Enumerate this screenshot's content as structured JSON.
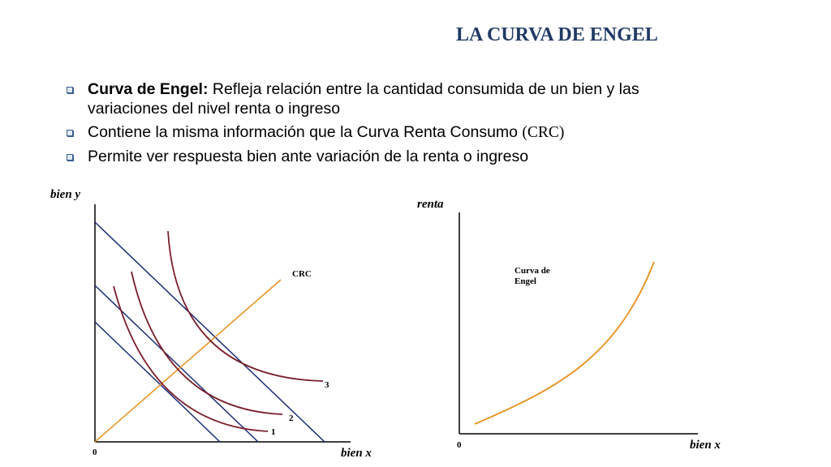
{
  "title": "LA CURVA DE ENGEL",
  "bullets": [
    {
      "bold": "Curva de Engel:",
      "text": " Refleja relación entre la cantidad consumida de un bien y las variaciones del nivel renta o ingreso"
    },
    {
      "text": "Contiene la misma información que la Curva Renta Consumo ",
      "serif_text": "(CRC)"
    },
    {
      "text": "Permite ver respuesta bien ante variación de la renta o  ingreso"
    }
  ],
  "left_diagram": {
    "y_axis_label": "bien y",
    "x_axis_label": "bien x",
    "origin_label": "0",
    "crc_label": "CRC",
    "curve_labels": [
      "1",
      "2",
      "3"
    ]
  },
  "right_diagram": {
    "y_axis_label": "renta",
    "x_axis_label": "bien x",
    "origin_label": "0",
    "curve_label_line1": "Curva de",
    "curve_label_line2": "Engel"
  },
  "colors": {
    "title": "#1f3a63",
    "budget_lines": "#1c2e7a",
    "indifference_curves": "#7a1f2b",
    "crc_line": "#e8901e",
    "engel_curve": "#e8901e"
  }
}
